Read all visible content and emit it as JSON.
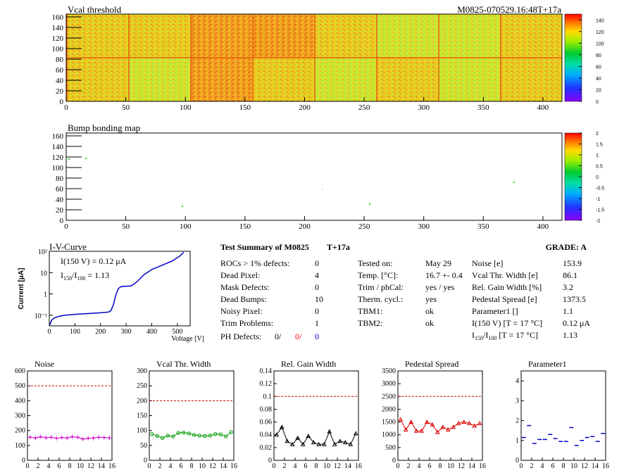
{
  "header": {
    "vcal_title": "Vcal threshold",
    "module_id": "M0825-070529.16:48T+17a",
    "bump_title": "Bump bonding map"
  },
  "maps": {
    "x_ticks": [
      "0",
      "50",
      "100",
      "150",
      "200",
      "250",
      "300",
      "350",
      "400"
    ],
    "y_ticks": [
      "0",
      "20",
      "40",
      "60",
      "80",
      "100",
      "120",
      "140",
      "160"
    ],
    "vcal_palette_ticks": [
      "0",
      "20",
      "40",
      "60",
      "80",
      "100",
      "120",
      "140"
    ],
    "bump_palette_ticks": [
      "-2",
      "-1.5",
      "-1",
      "-0.5",
      "0",
      "0.5",
      "1",
      "1.5",
      "2"
    ]
  },
  "iv": {
    "title": "I-V-Curve",
    "ylabel": "Current [μA]",
    "xlabel": "Voltage [V]",
    "x_ticks": [
      "0",
      "100",
      "200",
      "300",
      "400",
      "500"
    ],
    "y_ticks": [
      "10⁻¹",
      "1",
      "10",
      "10²"
    ],
    "legend_line1": "I(150 V) = 0.12 μA",
    "legend_line2_a": "I",
    "legend_line2_sub1": "150",
    "legend_line2_b": "/I",
    "legend_line2_sub2": "100",
    "legend_line2_c": " =  1.13"
  },
  "summary": {
    "title": "Test Summary of M0825",
    "temp_tag": "T+17a",
    "grade_label": "GRADE:  A",
    "rows": [
      {
        "label": "ROCs > 1% defects:",
        "value": "0"
      },
      {
        "label": "Dead Pixel:",
        "value": "4"
      },
      {
        "label": "Mask Defects:",
        "value": "0"
      },
      {
        "label": "Dead Bumps:",
        "value": "10"
      },
      {
        "label": "Noisy Pixel:",
        "value": "0"
      },
      {
        "label": "Trim Problems:",
        "value": "1"
      }
    ],
    "ph_label": "PH Defects:",
    "ph_values": [
      "0/",
      "0/",
      "0"
    ],
    "ph_colors": [
      "#000000",
      "#ff0000",
      "#0000cc"
    ],
    "mid": [
      {
        "label": "Tested on:",
        "value": "May 29"
      },
      {
        "label": "Temp. [°C]:",
        "value": "16.7 +- 0.4"
      },
      {
        "label": "Trim / phCal:",
        "value": "yes / yes"
      },
      {
        "label": "Therm. cycl.:",
        "value": "yes"
      },
      {
        "label": "TBM1:",
        "value": "ok"
      },
      {
        "label": "TBM2:",
        "value": "ok"
      }
    ],
    "right": [
      {
        "label": "Noise [e]",
        "value": "153.9"
      },
      {
        "label": "Vcal Thr. Width [e]",
        "value": "86.1"
      },
      {
        "label": "Rel. Gain Width [%]",
        "value": "3.2"
      },
      {
        "label": "Pedestal Spread [e]",
        "value": "1373.5"
      },
      {
        "label": "Parameter1 []",
        "value": "1.1"
      },
      {
        "label": "I(150 V) [T = 17 °C]",
        "value": "0.12 μA"
      }
    ],
    "ratio_label_a": "I",
    "ratio_sub1": "150",
    "ratio_label_b": "/I",
    "ratio_sub2": "100",
    "ratio_label_c": "  [T = 17 °C]",
    "ratio_value": "1.13"
  },
  "colors": {
    "noise": "#cc00cc",
    "vcal": "#009900",
    "gain": "#000000",
    "pedestal": "#dd0000",
    "param1": "#0000cc",
    "limit": "#cc0000",
    "iv": "#0000cc"
  },
  "chart_data": [
    {
      "type": "line",
      "title": "Noise",
      "x": [
        0,
        1,
        2,
        3,
        4,
        5,
        6,
        7,
        8,
        9,
        10,
        11,
        12,
        13,
        14,
        15
      ],
      "values": [
        155,
        150,
        158,
        152,
        155,
        148,
        153,
        150,
        158,
        155,
        143,
        148,
        150,
        155,
        153,
        150
      ],
      "ylim": [
        0,
        600
      ],
      "y_ticks": [
        "0",
        "100",
        "200",
        "300",
        "400",
        "500",
        "600"
      ],
      "limit": 500
    },
    {
      "type": "line",
      "title": "Vcal Thr. Width",
      "x": [
        0,
        1,
        2,
        3,
        4,
        5,
        6,
        7,
        8,
        9,
        10,
        11,
        12,
        13,
        14,
        15
      ],
      "values": [
        88,
        82,
        75,
        83,
        80,
        92,
        93,
        90,
        85,
        83,
        82,
        83,
        88,
        87,
        80,
        95
      ],
      "ylim": [
        0,
        300
      ],
      "y_ticks": [
        "0",
        "50",
        "100",
        "150",
        "200",
        "250",
        "300"
      ],
      "limit": 200
    },
    {
      "type": "line",
      "title": "Rel. Gain Width",
      "x": [
        0,
        1,
        2,
        3,
        4,
        5,
        6,
        7,
        8,
        9,
        10,
        11,
        12,
        13,
        14,
        15
      ],
      "values": [
        0.04,
        0.052,
        0.03,
        0.025,
        0.035,
        0.025,
        0.038,
        0.028,
        0.025,
        0.025,
        0.045,
        0.025,
        0.03,
        0.028,
        0.025,
        0.042
      ],
      "ylim": [
        0,
        0.14
      ],
      "y_ticks": [
        "0",
        "0.02",
        "0.04",
        "0.06",
        "0.08",
        "0.1",
        "0.12",
        "0.14"
      ],
      "limit": 0.1
    },
    {
      "type": "line",
      "title": "Pedestal Spread",
      "x": [
        0,
        1,
        2,
        3,
        4,
        5,
        6,
        7,
        8,
        9,
        10,
        11,
        12,
        13,
        14,
        15
      ],
      "values": [
        1600,
        1200,
        1500,
        1150,
        1150,
        1500,
        1400,
        1100,
        1300,
        1200,
        1300,
        1450,
        1500,
        1450,
        1350,
        1450
      ],
      "ylim": [
        0,
        3500
      ],
      "y_ticks": [
        "0",
        "500",
        "1000",
        "1500",
        "2000",
        "2500",
        "3000",
        "3500"
      ],
      "limit": 2500
    },
    {
      "type": "scatter",
      "title": "Parameter1",
      "x": [
        0,
        1,
        2,
        3,
        4,
        5,
        6,
        7,
        8,
        9,
        10,
        11,
        12,
        13,
        14,
        15
      ],
      "values": [
        1.15,
        1.75,
        0.85,
        1.05,
        1.05,
        1.3,
        1.1,
        0.95,
        0.95,
        1.65,
        0.75,
        1.0,
        1.15,
        1.2,
        0.95,
        1.35
      ],
      "ylim": [
        0,
        4.5
      ],
      "y_ticks": [
        "0",
        "1",
        "2",
        "3",
        "4"
      ],
      "limit": null
    }
  ],
  "x_ticks_small": [
    "0",
    "2",
    "4",
    "6",
    "8",
    "10",
    "12",
    "14",
    "16"
  ]
}
